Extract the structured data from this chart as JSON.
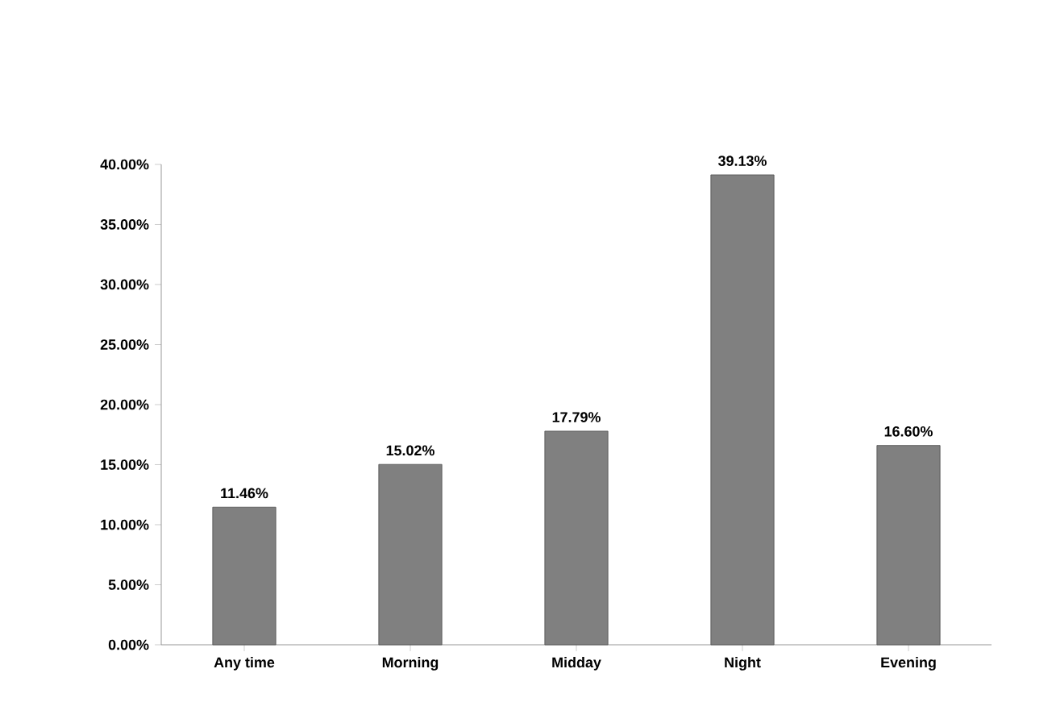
{
  "chart_data": {
    "type": "bar",
    "categories": [
      "Any time",
      "Morning",
      "Midday",
      "Night",
      "Evening"
    ],
    "values": [
      11.46,
      15.02,
      17.79,
      39.13,
      16.6
    ],
    "value_labels": [
      "11.46%",
      "15.02%",
      "17.79%",
      "39.13%",
      "16.60%"
    ],
    "color": "#808080",
    "ylim": [
      0,
      40
    ],
    "yticks": [
      {
        "value": 0,
        "label": "0.00%"
      },
      {
        "value": 5,
        "label": "5.00%"
      },
      {
        "value": 10,
        "label": "10.00%"
      },
      {
        "value": 15,
        "label": "15.00%"
      },
      {
        "value": 20,
        "label": "20.00%"
      },
      {
        "value": 25,
        "label": "25.00%"
      },
      {
        "value": 30,
        "label": "30.00%"
      },
      {
        "value": 35,
        "label": "35.00%"
      },
      {
        "value": 40,
        "label": "40.00%"
      }
    ]
  }
}
